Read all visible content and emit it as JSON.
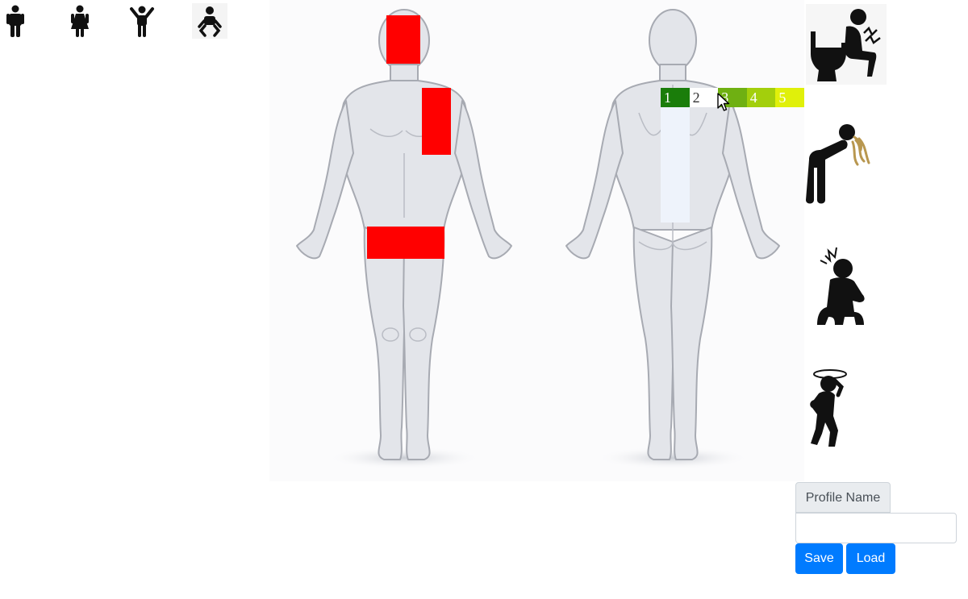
{
  "person_types": [
    {
      "name": "man-icon"
    },
    {
      "name": "woman-icon"
    },
    {
      "name": "child-icon"
    },
    {
      "name": "baby-icon"
    }
  ],
  "pain_zones": {
    "front": [
      "head",
      "left-shoulder-arm",
      "pelvis"
    ],
    "back": [
      "spine"
    ],
    "color": "#ff0000"
  },
  "pain_scale": {
    "levels": [
      "1",
      "2",
      "3",
      "4",
      "5"
    ],
    "colors": [
      "#1a7d0a",
      "#ffffff",
      "#6fb012",
      "#a3cf0c",
      "#e0f00a"
    ],
    "selected": "2"
  },
  "symptoms": [
    {
      "name": "toilet-diarrhea-icon"
    },
    {
      "name": "vomiting-icon"
    },
    {
      "name": "headache-icon"
    },
    {
      "name": "dizziness-icon"
    }
  ],
  "profile": {
    "label": "Profile Name",
    "value": "",
    "placeholder": "",
    "save_label": "Save",
    "load_label": "Load",
    "button_color": "#007bff"
  }
}
